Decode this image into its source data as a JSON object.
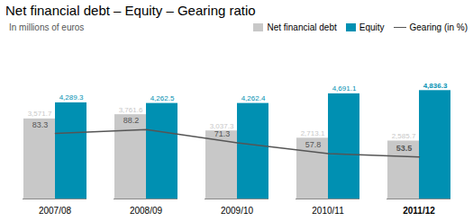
{
  "chart_data": {
    "type": "bar",
    "title": "Net financial debt – Equity – Gearing ratio",
    "subtitle": "In millions of euros",
    "categories": [
      "2007/08",
      "2008/09",
      "2009/10",
      "2010/11",
      "2011/12"
    ],
    "series": [
      {
        "name": "Net financial debt",
        "type": "bar",
        "color": "#c8c8c8",
        "values": [
          3571.7,
          3761.6,
          3037.3,
          2713.1,
          2585.7
        ],
        "value_labels": [
          "3,571.7",
          "3,761.6",
          "3,037.3",
          "2,713.1",
          "2,585.7"
        ]
      },
      {
        "name": "Equity",
        "type": "bar",
        "color": "#0090b2",
        "values": [
          4289.3,
          4262.5,
          4262.4,
          4691.1,
          4836.3
        ],
        "value_labels": [
          "4,289.3",
          "4,262.5",
          "4,262.4",
          "4,691.1",
          "4,836.3"
        ]
      },
      {
        "name": "Gearing (in %)",
        "type": "line",
        "axis": "y2",
        "color": "#555555",
        "values": [
          83.3,
          88.2,
          71.3,
          57.8,
          53.5
        ]
      }
    ],
    "ylim": [
      0,
      7012.635
    ],
    "y2lim": [
      0,
      200
    ],
    "data_labels": true,
    "tick_labels": "x",
    "legend": "upper right"
  }
}
